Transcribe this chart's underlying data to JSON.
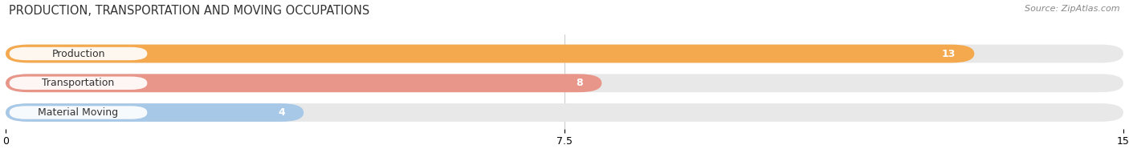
{
  "title": "PRODUCTION, TRANSPORTATION AND MOVING OCCUPATIONS",
  "source": "Source: ZipAtlas.com",
  "categories": [
    "Production",
    "Transportation",
    "Material Moving"
  ],
  "values": [
    13,
    8,
    4
  ],
  "bar_colors": [
    "#F5A94E",
    "#E8968A",
    "#A8C8E8"
  ],
  "bar_bg_color": "#E8E8E8",
  "xlim": [
    0,
    15
  ],
  "xticks": [
    0,
    7.5,
    15
  ],
  "figsize": [
    14.06,
    1.96
  ],
  "dpi": 100,
  "title_fontsize": 10.5,
  "label_fontsize": 9,
  "value_fontsize": 9,
  "bar_height": 0.62,
  "background_color": "#ffffff",
  "label_pill_color": "#ffffff",
  "value_label_color": "#ffffff",
  "grid_color": "#cccccc"
}
